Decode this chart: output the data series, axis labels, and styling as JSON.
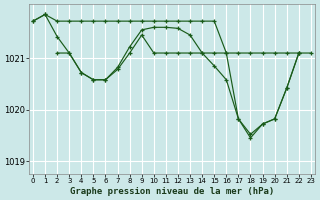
{
  "title": "Graphe pression niveau de la mer (hPa)",
  "bg_color": "#cce8e8",
  "grid_color": "#ffffff",
  "line_color": "#1a5c1a",
  "xmin": -0.3,
  "xmax": 23.3,
  "ymin": 1018.75,
  "ymax": 1022.05,
  "yticks": [
    1019,
    1020,
    1021
  ],
  "xticks": [
    0,
    1,
    2,
    3,
    4,
    5,
    6,
    7,
    8,
    9,
    10,
    11,
    12,
    13,
    14,
    15,
    16,
    17,
    18,
    19,
    20,
    21,
    22,
    23
  ],
  "series": [
    {
      "x": [
        0,
        1,
        2,
        3,
        4,
        5,
        6,
        7,
        8,
        9,
        10,
        11,
        12,
        13,
        14,
        15,
        16,
        17,
        18,
        19,
        20,
        21,
        22,
        23
      ],
      "y": [
        1021.72,
        1021.85,
        1021.72,
        1021.72,
        1021.72,
        1021.72,
        1021.72,
        1021.72,
        1021.72,
        1021.72,
        1021.72,
        1021.72,
        1021.72,
        1021.72,
        1021.72,
        1021.72,
        1021.1,
        1021.1,
        1021.1,
        1021.1,
        1021.1,
        1021.1,
        1021.1,
        1021.1
      ]
    },
    {
      "x": [
        0,
        1,
        2,
        3,
        4,
        5,
        6,
        7,
        8,
        9,
        10,
        11,
        12,
        13,
        14,
        15,
        16,
        17,
        18,
        19,
        20,
        21,
        22
      ],
      "y": [
        1021.72,
        1021.85,
        1021.42,
        1021.1,
        1020.72,
        1020.58,
        1020.58,
        1020.82,
        1021.22,
        1021.55,
        1021.6,
        1021.6,
        1021.58,
        1021.45,
        1021.1,
        1020.85,
        1020.58,
        1019.82,
        1019.45,
        1019.72,
        1019.82,
        1020.42,
        1021.1
      ]
    },
    {
      "x": [
        2,
        3,
        4,
        5,
        6,
        7,
        8,
        9,
        10,
        11,
        12,
        13,
        14,
        15,
        16,
        17,
        18,
        19,
        20,
        21,
        22
      ],
      "y": [
        1021.1,
        1021.1,
        1020.72,
        1020.58,
        1020.58,
        1020.78,
        1021.1,
        1021.45,
        1021.1,
        1021.1,
        1021.1,
        1021.1,
        1021.1,
        1021.1,
        1021.1,
        1019.82,
        1019.52,
        1019.72,
        1019.82,
        1020.42,
        1021.1
      ]
    }
  ]
}
